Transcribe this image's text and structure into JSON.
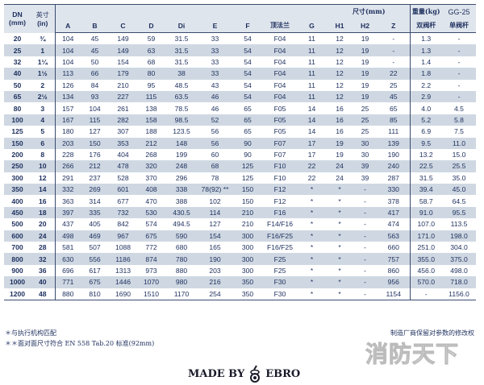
{
  "header": {
    "dn": "DN",
    "dn_unit": "(mm)",
    "inch": "英寸",
    "inch_unit": "(in)",
    "dims_title": "尺寸(mm)",
    "cols": [
      "A",
      "B",
      "C",
      "D",
      "Di",
      "E",
      "F",
      "顶法兰",
      "G",
      "H1",
      "H2",
      "Z"
    ],
    "weight_title": "重量(kg)",
    "gg25": "GG-25",
    "w1": "双阀杆",
    "w2": "单阀杆"
  },
  "rows": [
    [
      "20",
      "¾",
      "104",
      "45",
      "149",
      "59",
      "31.5",
      "33",
      "54",
      "F04",
      "11",
      "12",
      "19",
      "-",
      "1.3",
      "-"
    ],
    [
      "25",
      "1",
      "104",
      "45",
      "149",
      "63",
      "31.5",
      "33",
      "54",
      "F04",
      "11",
      "12",
      "19",
      "-",
      "1.3",
      "-"
    ],
    [
      "32",
      "1¼",
      "104",
      "50",
      "154",
      "68",
      "31.5",
      "33",
      "54",
      "F04",
      "11",
      "12",
      "19",
      "-",
      "1.4",
      "-"
    ],
    [
      "40",
      "1½",
      "113",
      "66",
      "179",
      "80",
      "38",
      "33",
      "54",
      "F04",
      "11",
      "12",
      "19",
      "22",
      "1.8",
      "-"
    ],
    [
      "50",
      "2",
      "126",
      "84",
      "210",
      "95",
      "48.5",
      "43",
      "54",
      "F04",
      "11",
      "12",
      "19",
      "25",
      "2.2",
      "-"
    ],
    [
      "65",
      "2½",
      "134",
      "93",
      "227",
      "115",
      "63.5",
      "46",
      "54",
      "F04",
      "11",
      "12",
      "19",
      "45",
      "2.9",
      "-"
    ],
    [
      "80",
      "3",
      "157",
      "104",
      "261",
      "138",
      "78.5",
      "46",
      "65",
      "F05",
      "14",
      "16",
      "25",
      "65",
      "4.0",
      "4.5"
    ],
    [
      "100",
      "4",
      "167",
      "115",
      "282",
      "158",
      "98.5",
      "52",
      "65",
      "F05",
      "14",
      "16",
      "25",
      "85",
      "5.2",
      "5.8"
    ],
    [
      "125",
      "5",
      "180",
      "127",
      "307",
      "188",
      "123.5",
      "56",
      "65",
      "F05",
      "14",
      "16",
      "25",
      "111",
      "6.9",
      "7.5"
    ],
    [
      "150",
      "6",
      "203",
      "150",
      "353",
      "212",
      "148",
      "56",
      "90",
      "F07",
      "17",
      "19",
      "30",
      "139",
      "9.5",
      "11.0"
    ],
    [
      "200",
      "8",
      "228",
      "176",
      "404",
      "268",
      "199",
      "60",
      "90",
      "F07",
      "17",
      "19",
      "30",
      "190",
      "13.2",
      "15.0"
    ],
    [
      "250",
      "10",
      "266",
      "212",
      "478",
      "320",
      "248",
      "68",
      "125",
      "F10",
      "22",
      "24",
      "39",
      "240",
      "22.5",
      "25.5"
    ],
    [
      "300",
      "12",
      "291",
      "237",
      "528",
      "370",
      "296",
      "78",
      "125",
      "F10",
      "22",
      "24",
      "39",
      "287",
      "31.5",
      "35.0"
    ],
    [
      "350",
      "14",
      "332",
      "269",
      "601",
      "408",
      "338",
      "78(92) **",
      "150",
      "F12",
      "*",
      "*",
      "-",
      "330",
      "39.4",
      "45.0"
    ],
    [
      "400",
      "16",
      "363",
      "314",
      "677",
      "470",
      "388",
      "102",
      "150",
      "F12",
      "*",
      "*",
      "-",
      "378",
      "58.7",
      "64.5"
    ],
    [
      "450",
      "18",
      "397",
      "335",
      "732",
      "530",
      "430.5",
      "114",
      "210",
      "F16",
      "*",
      "*",
      "-",
      "417",
      "91.0",
      "95.5"
    ],
    [
      "500",
      "20",
      "437",
      "405",
      "842",
      "574",
      "494.5",
      "127",
      "210",
      "F14/F16",
      "*",
      "*",
      "-",
      "474",
      "107.0",
      "113.5"
    ],
    [
      "600",
      "24",
      "498",
      "469",
      "967",
      "675",
      "590",
      "154",
      "300",
      "F16/F25",
      "*",
      "*",
      "-",
      "563",
      "171.0",
      "198.0"
    ],
    [
      "700",
      "28",
      "581",
      "507",
      "1088",
      "772",
      "680",
      "165",
      "300",
      "F16/F25",
      "*",
      "*",
      "-",
      "660",
      "251.0",
      "304.0"
    ],
    [
      "800",
      "32",
      "630",
      "556",
      "1186",
      "874",
      "780",
      "190",
      "300",
      "F25",
      "*",
      "*",
      "-",
      "757",
      "355.0",
      "375.0"
    ],
    [
      "900",
      "36",
      "696",
      "617",
      "1313",
      "973",
      "880",
      "203",
      "300",
      "F25",
      "*",
      "*",
      "-",
      "860",
      "456.0",
      "498.0"
    ],
    [
      "1000",
      "40",
      "771",
      "675",
      "1446",
      "1070",
      "980",
      "216",
      "350",
      "F30",
      "*",
      "*",
      "-",
      "956",
      "570.0",
      "718.0"
    ],
    [
      "1200",
      "48",
      "880",
      "810",
      "1690",
      "1510",
      "1170",
      "254",
      "350",
      "F30",
      "*",
      "*",
      "-",
      "1154",
      "-",
      "1156.0"
    ]
  ],
  "notes": {
    "note1": "＊与执行机构匹配",
    "note2": "＊＊面对面尺寸符合 EN 558 Tab.20 标准(92mm)",
    "rights": "制造厂商保留对参数的修改权"
  },
  "watermark": "消防天下",
  "footer": {
    "made_by": "MADE BY",
    "brand": "EBRO"
  }
}
